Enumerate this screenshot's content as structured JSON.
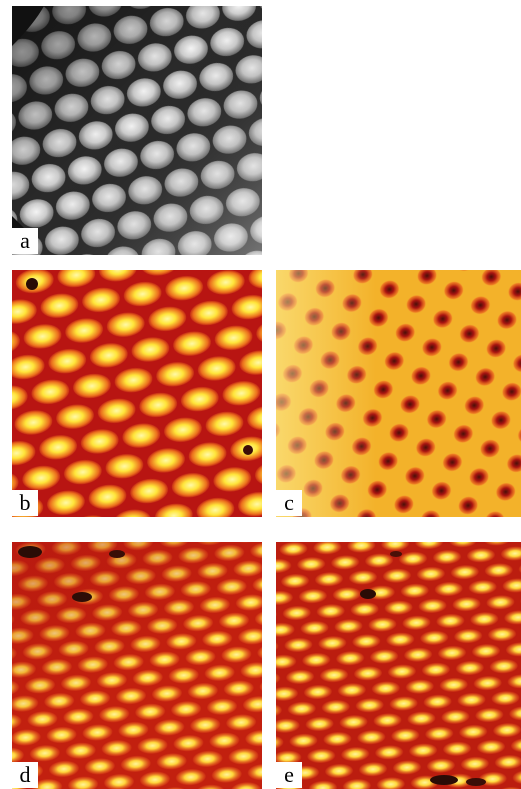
{
  "figure": {
    "panels": [
      {
        "id": "a",
        "label": "a",
        "colormap": "grayscale"
      },
      {
        "id": "b",
        "label": "b",
        "colormap": "hot"
      },
      {
        "id": "c",
        "label": "c",
        "colormap": "hot"
      },
      {
        "id": "d",
        "label": "d",
        "colormap": "hot"
      },
      {
        "id": "e",
        "label": "e",
        "colormap": "hot"
      }
    ]
  },
  "colors": {
    "gray_dark": "#1c1c1c",
    "gray_mid": "#6e6e6e",
    "gray_light": "#f2f2f2",
    "hot_dark": "#2a0c06",
    "hot_red": "#b2130f",
    "hot_orange": "#e4531b",
    "hot_yellow": "#fff34a"
  }
}
